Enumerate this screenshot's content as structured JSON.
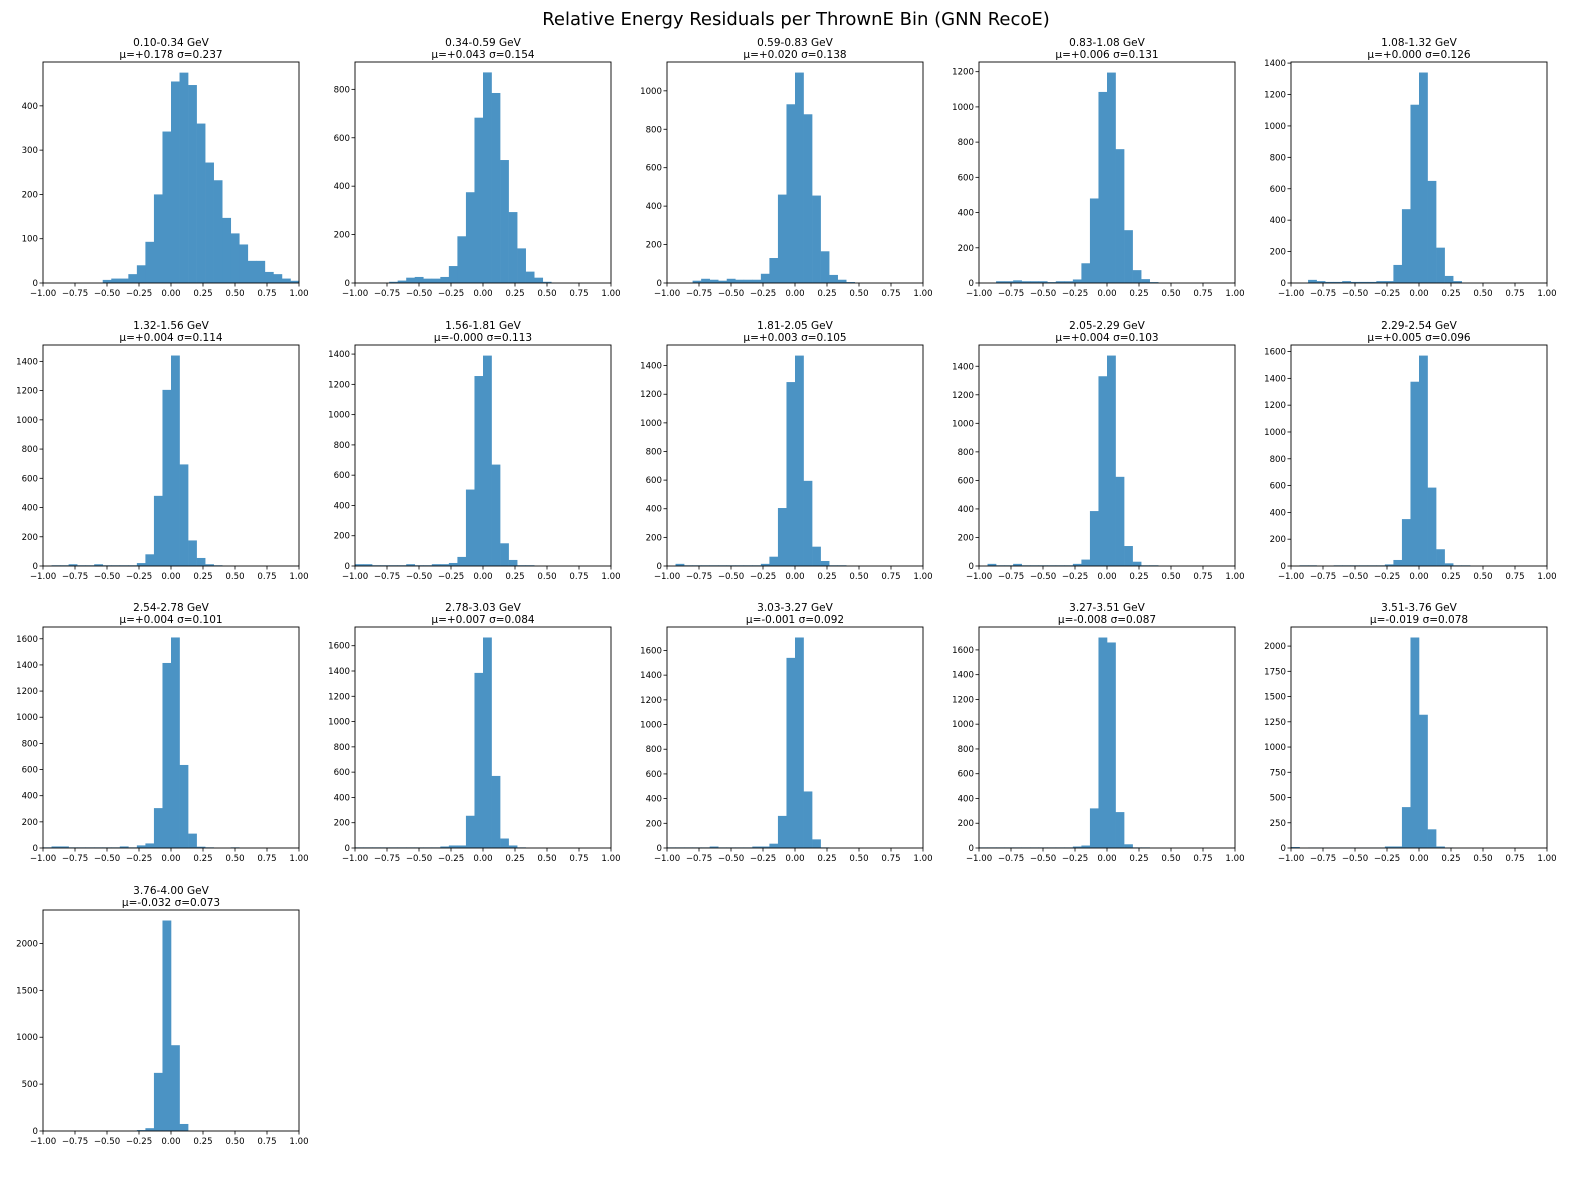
{
  "chart_data": {
    "type": "bar",
    "title": "Relative Energy Residuals per ThrownE Bin (GNN RecoE)",
    "bar_color": "#4b93c4",
    "x_range": [
      -1,
      1
    ],
    "bins": 30,
    "xticks": [
      "−1.00",
      "−0.75",
      "−0.50",
      "−0.25",
      "0.00",
      "0.25",
      "0.50",
      "0.75",
      "1.00"
    ],
    "xtick_values": [
      -1,
      -0.75,
      -0.5,
      -0.25,
      0,
      0.25,
      0.5,
      0.75,
      1
    ],
    "grid": false,
    "panels": [
      {
        "title": "0.10-0.34 GeV",
        "stats": "μ=+0.178 σ=0.237",
        "ymax": 499,
        "yticks": [
          0,
          100,
          200,
          300,
          400
        ],
        "counts": [
          0,
          0,
          0,
          0,
          0,
          0,
          0,
          7,
          10,
          10,
          20,
          40,
          93,
          200,
          342,
          455,
          475,
          447,
          360,
          272,
          232,
          147,
          112,
          87,
          50,
          50,
          25,
          20,
          10,
          5
        ]
      },
      {
        "title": "0.34-0.59 GeV",
        "stats": "μ=+0.043 σ=0.154",
        "ymax": 913,
        "yticks": [
          0,
          200,
          400,
          600,
          800
        ],
        "counts": [
          0,
          0,
          0,
          0,
          5,
          10,
          22,
          25,
          18,
          18,
          25,
          70,
          193,
          375,
          683,
          870,
          785,
          508,
          293,
          143,
          47,
          22,
          5,
          0,
          0,
          0,
          0,
          0,
          0,
          0
        ]
      },
      {
        "title": "0.59-0.83 GeV",
        "stats": "μ=+0.020 σ=0.138",
        "ymax": 1150,
        "yticks": [
          0,
          200,
          400,
          600,
          800,
          1000
        ],
        "counts": [
          0,
          0,
          0,
          12,
          22,
          17,
          12,
          22,
          17,
          17,
          17,
          48,
          130,
          460,
          930,
          1095,
          878,
          455,
          165,
          42,
          17,
          5,
          0,
          0,
          0,
          0,
          0,
          0,
          0,
          0
        ]
      },
      {
        "title": "0.83-1.08 GeV",
        "stats": "μ=+0.006 σ=0.131",
        "ymax": 1255,
        "yticks": [
          0,
          200,
          400,
          600,
          800,
          1000,
          1200
        ],
        "counts": [
          0,
          0,
          10,
          10,
          15,
          10,
          10,
          10,
          5,
          10,
          10,
          20,
          112,
          480,
          1085,
          1195,
          760,
          300,
          73,
          22,
          5,
          0,
          0,
          0,
          0,
          0,
          0,
          0,
          0,
          0
        ]
      },
      {
        "title": "1.08-1.32 GeV",
        "stats": "μ=+0.000 σ=0.126",
        "ymax": 1407,
        "yticks": [
          0,
          200,
          400,
          600,
          800,
          1000,
          1200,
          1400
        ],
        "counts": [
          0,
          0,
          20,
          12,
          7,
          7,
          12,
          7,
          7,
          7,
          12,
          12,
          115,
          470,
          1135,
          1340,
          650,
          225,
          45,
          12,
          0,
          0,
          0,
          0,
          0,
          0,
          0,
          0,
          0,
          0
        ]
      },
      {
        "title": "1.32-1.56 GeV",
        "stats": "μ=+0.004 σ=0.114",
        "ymax": 1512,
        "yticks": [
          0,
          200,
          400,
          600,
          800,
          1000,
          1200,
          1400
        ],
        "counts": [
          0,
          5,
          5,
          12,
          5,
          5,
          12,
          5,
          5,
          5,
          5,
          20,
          80,
          480,
          1205,
          1440,
          695,
          175,
          55,
          12,
          5,
          0,
          0,
          0,
          0,
          0,
          0,
          0,
          0,
          0
        ]
      },
      {
        "title": "1.56-1.81 GeV",
        "stats": "μ=-0.000 σ=0.113",
        "ymax": 1460,
        "yticks": [
          0,
          200,
          400,
          600,
          800,
          1000,
          1200,
          1400
        ],
        "counts": [
          12,
          12,
          5,
          5,
          5,
          5,
          12,
          5,
          5,
          12,
          12,
          20,
          60,
          505,
          1255,
          1390,
          670,
          150,
          40,
          5,
          5,
          0,
          0,
          0,
          0,
          0,
          0,
          0,
          0,
          0
        ]
      },
      {
        "title": "1.81-2.05 GeV",
        "stats": "μ=+0.003 σ=0.105",
        "ymax": 1544,
        "yticks": [
          0,
          200,
          400,
          600,
          800,
          1000,
          1200,
          1400
        ],
        "counts": [
          0,
          15,
          5,
          5,
          5,
          5,
          5,
          5,
          5,
          5,
          5,
          15,
          65,
          405,
          1285,
          1470,
          595,
          135,
          35,
          5,
          5,
          0,
          0,
          0,
          0,
          0,
          0,
          0,
          0,
          0
        ]
      },
      {
        "title": "2.05-2.29 GeV",
        "stats": "μ=+0.004 σ=0.103",
        "ymax": 1549,
        "yticks": [
          0,
          200,
          400,
          600,
          800,
          1000,
          1200,
          1400
        ],
        "counts": [
          0,
          15,
          5,
          5,
          15,
          5,
          5,
          5,
          5,
          5,
          5,
          15,
          45,
          385,
          1330,
          1475,
          625,
          140,
          30,
          5,
          5,
          0,
          0,
          0,
          0,
          0,
          0,
          0,
          0,
          0
        ]
      },
      {
        "title": "2.29-2.54 GeV",
        "stats": "μ=+0.005 σ=0.096",
        "ymax": 1649,
        "yticks": [
          0,
          200,
          400,
          600,
          800,
          1000,
          1200,
          1400,
          1600
        ],
        "counts": [
          0,
          5,
          5,
          0,
          0,
          5,
          5,
          5,
          5,
          5,
          5,
          12,
          45,
          350,
          1375,
          1570,
          585,
          125,
          20,
          5,
          5,
          0,
          0,
          0,
          0,
          0,
          0,
          0,
          0,
          0
        ]
      },
      {
        "title": "2.54-2.78 GeV",
        "stats": "μ=+0.004 σ=0.101",
        "ymax": 1690,
        "yticks": [
          0,
          200,
          400,
          600,
          800,
          1000,
          1200,
          1400,
          1600
        ],
        "counts": [
          5,
          12,
          12,
          5,
          5,
          5,
          5,
          5,
          5,
          12,
          5,
          20,
          35,
          305,
          1415,
          1610,
          635,
          110,
          10,
          5,
          0,
          0,
          5,
          0,
          0,
          0,
          0,
          0,
          0,
          0
        ]
      },
      {
        "title": "2.78-3.03 GeV",
        "stats": "μ=+0.007 σ=0.084",
        "ymax": 1748,
        "yticks": [
          0,
          200,
          400,
          600,
          800,
          1000,
          1200,
          1400,
          1600
        ],
        "counts": [
          5,
          5,
          5,
          5,
          5,
          5,
          5,
          5,
          5,
          5,
          12,
          20,
          20,
          255,
          1385,
          1665,
          570,
          75,
          20,
          5,
          0,
          0,
          0,
          0,
          0,
          0,
          0,
          0,
          0,
          0
        ]
      },
      {
        "title": "3.03-3.27 GeV",
        "stats": "μ=-0.001 σ=0.092",
        "ymax": 1790,
        "yticks": [
          0,
          200,
          400,
          600,
          800,
          1000,
          1200,
          1400,
          1600
        ],
        "counts": [
          5,
          5,
          5,
          5,
          5,
          12,
          5,
          5,
          5,
          5,
          12,
          12,
          35,
          260,
          1540,
          1705,
          458,
          70,
          5,
          0,
          0,
          0,
          0,
          0,
          0,
          0,
          0,
          0,
          0,
          0
        ]
      },
      {
        "title": "3.27-3.51 GeV",
        "stats": "μ=-0.008 σ=0.087",
        "ymax": 1785,
        "yticks": [
          0,
          200,
          400,
          600,
          800,
          1000,
          1200,
          1400,
          1600
        ],
        "counts": [
          5,
          5,
          5,
          5,
          5,
          5,
          5,
          5,
          5,
          5,
          5,
          12,
          20,
          320,
          1700,
          1660,
          290,
          30,
          5,
          5,
          0,
          0,
          0,
          0,
          0,
          0,
          0,
          0,
          0,
          0
        ]
      },
      {
        "title": "3.51-3.76 GeV",
        "stats": "μ=-0.019 σ=0.078",
        "ymax": 2189,
        "yticks": [
          0,
          250,
          500,
          750,
          1000,
          1250,
          1500,
          1750,
          2000
        ],
        "counts": [
          10,
          0,
          5,
          5,
          5,
          5,
          5,
          5,
          5,
          5,
          5,
          15,
          15,
          405,
          2085,
          1320,
          185,
          15,
          5,
          0,
          0,
          0,
          0,
          0,
          0,
          0,
          0,
          0,
          0,
          0
        ]
      },
      {
        "title": "3.76-4.00 GeV",
        "stats": "μ=-0.032 σ=0.073",
        "ymax": 2357,
        "yticks": [
          0,
          500,
          1000,
          1500,
          2000
        ],
        "counts": [
          0,
          0,
          0,
          0,
          0,
          0,
          0,
          0,
          0,
          0,
          0,
          10,
          30,
          620,
          2245,
          915,
          75,
          0,
          0,
          0,
          0,
          0,
          0,
          0,
          0,
          0,
          0,
          0,
          0,
          0
        ]
      }
    ]
  }
}
